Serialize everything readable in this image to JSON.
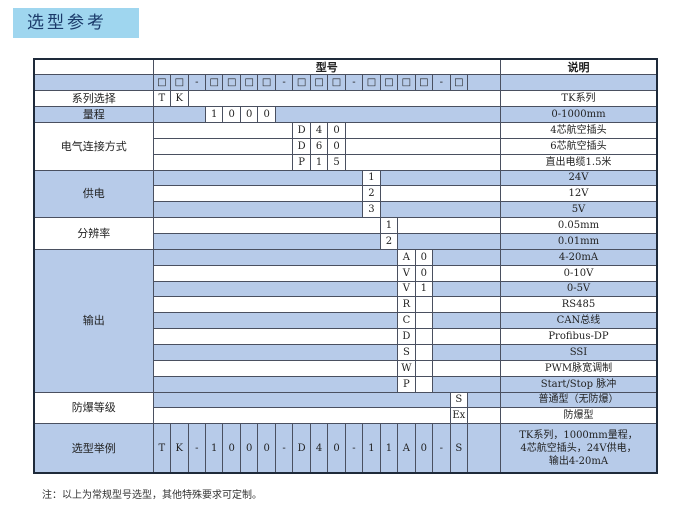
{
  "header": {
    "title": "选型参考"
  },
  "table": {
    "head_model": "型号",
    "head_desc": "说明",
    "code_template": [
      "□",
      "□",
      "-",
      "□",
      "□",
      "□",
      "□",
      "-",
      "□",
      "□",
      "□",
      "-",
      "□",
      "□",
      "□",
      "□",
      "-",
      "□"
    ],
    "series": {
      "label": "系列选择",
      "codes": [
        "T",
        "K"
      ],
      "desc": "TK系列"
    },
    "range": {
      "label": "量程",
      "codes": [
        "1",
        "0",
        "0",
        "0"
      ],
      "desc": "0-1000mm"
    },
    "electrical": {
      "label": "电气连接方式",
      "rows": [
        {
          "codes": [
            "D",
            "4",
            "0"
          ],
          "desc": "4芯航空插头"
        },
        {
          "codes": [
            "D",
            "6",
            "0"
          ],
          "desc": "6芯航空插头"
        },
        {
          "codes": [
            "P",
            "1",
            "5"
          ],
          "desc": "直出电缆1.5米"
        }
      ]
    },
    "power": {
      "label": "供电",
      "rows": [
        {
          "code": "1",
          "desc": "24V"
        },
        {
          "code": "2",
          "desc": "12V"
        },
        {
          "code": "3",
          "desc": "5V"
        }
      ]
    },
    "resolution": {
      "label": "分辨率",
      "rows": [
        {
          "code": "1",
          "desc": "0.05mm"
        },
        {
          "code": "2",
          "desc": "0.01mm"
        }
      ]
    },
    "output": {
      "label": "输出",
      "rows": [
        {
          "c1": "A",
          "c2": "0",
          "desc": "4-20mA"
        },
        {
          "c1": "V",
          "c2": "0",
          "desc": "0-10V"
        },
        {
          "c1": "V",
          "c2": "1",
          "desc": "0-5V"
        },
        {
          "c1": "R",
          "c2": "",
          "desc": "RS485"
        },
        {
          "c1": "C",
          "c2": "",
          "desc": "CAN总线"
        },
        {
          "c1": "D",
          "c2": "",
          "desc": "Profibus-DP"
        },
        {
          "c1": "S",
          "c2": "",
          "desc": "SSI"
        },
        {
          "c1": "W",
          "c2": "",
          "desc": "PWM脉宽调制"
        },
        {
          "c1": "P",
          "c2": "",
          "desc": "Start/Stop 脉冲"
        }
      ]
    },
    "explosion": {
      "label": "防爆等级",
      "rows": [
        {
          "code": "S",
          "desc": "普通型（无防爆）"
        },
        {
          "code": "Ex",
          "desc": "防爆型"
        }
      ]
    },
    "example": {
      "label": "选型举例",
      "codes": [
        "T",
        "K",
        "-",
        "1",
        "0",
        "0",
        "0",
        "-",
        "D",
        "4",
        "0",
        "-",
        "1",
        "1",
        "A",
        "0",
        "-",
        "S"
      ],
      "desc_lines": [
        "TK系列，1000mm量程，",
        "4芯航空插头，24V供电，",
        "输出4-20mA"
      ]
    }
  },
  "note": "注：以上为常规型号选型，其他特殊要求可定制。"
}
